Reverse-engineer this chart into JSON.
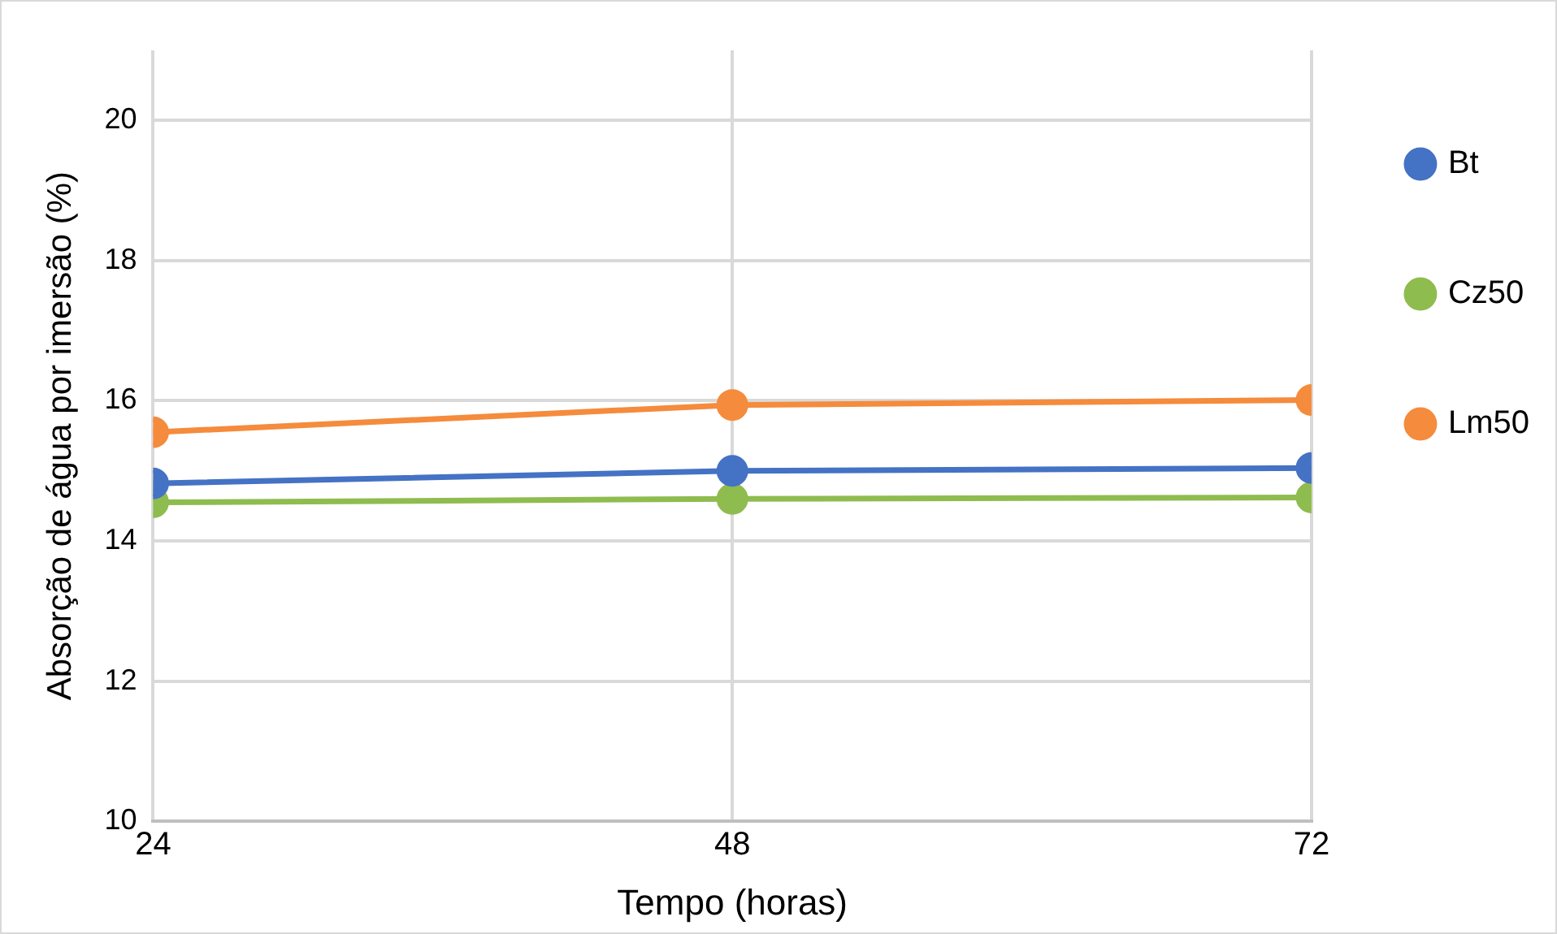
{
  "chart_data": {
    "type": "line",
    "xlabel": "Tempo (horas)",
    "ylabel": "Absorção de água por imersão (%)",
    "x": [
      24,
      48,
      72
    ],
    "xlim": [
      24,
      72
    ],
    "xticks": [
      24,
      48,
      72
    ],
    "ylim": [
      10,
      21
    ],
    "yticks": [
      10,
      12,
      14,
      16,
      18,
      20
    ],
    "grid": true,
    "legend": "right",
    "marker": "circle",
    "line_style": "solid",
    "series": [
      {
        "name": "Bt",
        "color": "#4472c4",
        "values": [
          14.82,
          15.0,
          15.04
        ]
      },
      {
        "name": "Cz50",
        "color": "#8fbc4f",
        "values": [
          14.55,
          14.6,
          14.62
        ]
      },
      {
        "name": "Lm50",
        "color": "#f58b3c",
        "values": [
          15.55,
          15.94,
          16.01
        ]
      }
    ]
  }
}
